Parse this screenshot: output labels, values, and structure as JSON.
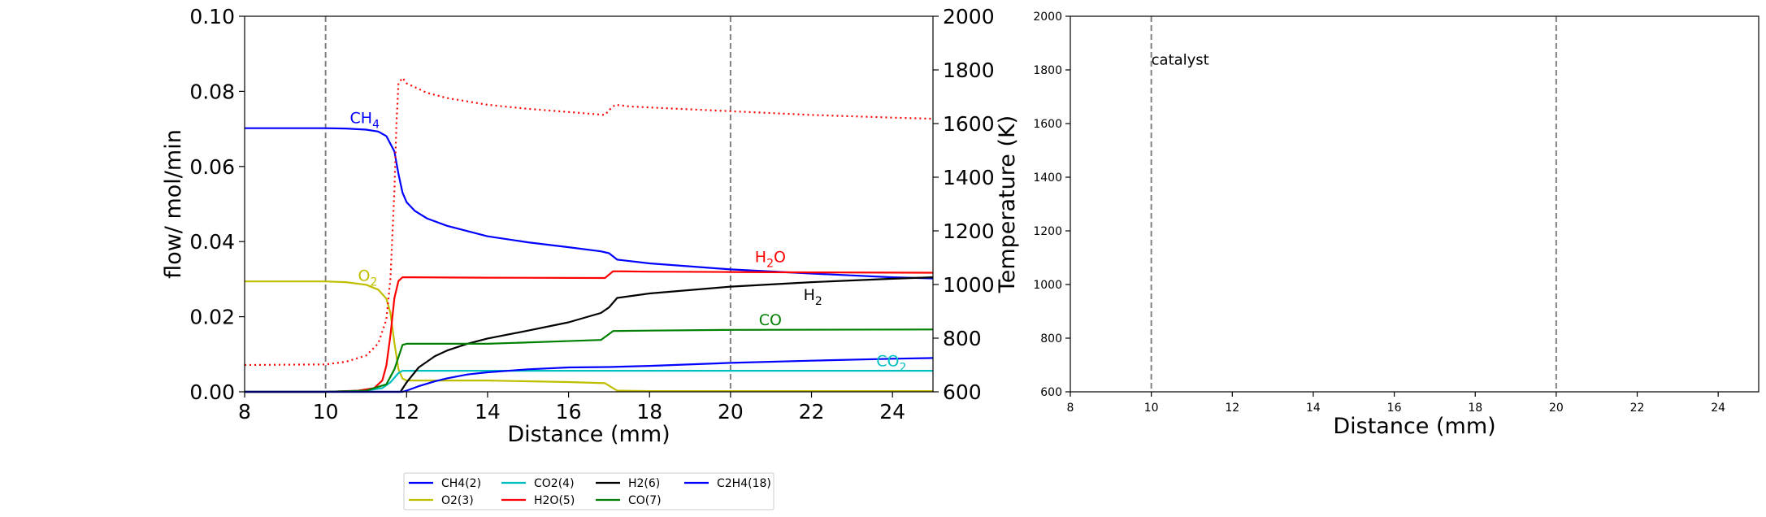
{
  "chart_data": [
    {
      "type": "line",
      "xlabel": "Distance (mm)",
      "ylabel": "flow/ mol/min",
      "y2label": "Temperature (K)",
      "xlim": [
        8,
        25
      ],
      "ylim": [
        0,
        0.1
      ],
      "y2lim": [
        600,
        2000
      ],
      "x_ticks": [
        "8",
        "10",
        "12",
        "14",
        "16",
        "18",
        "20",
        "22",
        "24"
      ],
      "y_ticks": [
        "0.00",
        "0.02",
        "0.04",
        "0.06",
        "0.08",
        "0.10"
      ],
      "y2_ticks": [
        "600",
        "800",
        "1000",
        "1200",
        "1400",
        "1600",
        "1800",
        "2000"
      ],
      "vlines": [
        10,
        20
      ],
      "series": [
        {
          "name": "CH4(2)",
          "color": "#0000ff",
          "x": [
            8,
            10,
            10.5,
            11,
            11.3,
            11.5,
            11.7,
            11.8,
            11.9,
            12,
            12.2,
            12.5,
            13,
            14,
            15,
            16,
            16.8,
            17,
            17.2,
            18,
            20,
            22,
            24,
            25
          ],
          "y": [
            0.0702,
            0.0702,
            0.0701,
            0.0698,
            0.0693,
            0.0681,
            0.064,
            0.058,
            0.053,
            0.0505,
            0.0482,
            0.0462,
            0.0442,
            0.0414,
            0.0398,
            0.0385,
            0.0374,
            0.0369,
            0.0352,
            0.0342,
            0.0326,
            0.0315,
            0.0305,
            0.0302
          ]
        },
        {
          "name": "O2(3)",
          "color": "#bfbf00",
          "x": [
            8,
            10,
            10.5,
            11,
            11.3,
            11.5,
            11.6,
            11.7,
            11.8,
            11.9,
            12,
            14,
            16,
            16.9,
            17.2,
            18,
            20,
            25
          ],
          "y": [
            0.0294,
            0.0294,
            0.0292,
            0.0285,
            0.0272,
            0.0248,
            0.021,
            0.013,
            0.006,
            0.0035,
            0.003,
            0.003,
            0.0026,
            0.0023,
            0.0003,
            0.0002,
            0.0002,
            0.0002
          ]
        },
        {
          "name": "CO2(4)",
          "color": "#00bfbf",
          "x": [
            8,
            10,
            11,
            11.4,
            11.6,
            11.8,
            11.9,
            12,
            14,
            17,
            20,
            25
          ],
          "y": [
            0,
            0,
            0.0003,
            0.001,
            0.0025,
            0.005,
            0.0056,
            0.0056,
            0.0056,
            0.0056,
            0.0056,
            0.0056
          ]
        },
        {
          "name": "H2O(5)",
          "color": "#ff0000",
          "x": [
            8,
            10,
            10.8,
            11.2,
            11.4,
            11.5,
            11.6,
            11.7,
            11.8,
            11.9,
            12,
            14,
            16.9,
            17.1,
            18,
            20,
            22,
            25
          ],
          "y": [
            0,
            0,
            0.0003,
            0.001,
            0.003,
            0.007,
            0.015,
            0.025,
            0.0295,
            0.0305,
            0.0305,
            0.0304,
            0.0303,
            0.0321,
            0.032,
            0.0319,
            0.0318,
            0.0317
          ]
        },
        {
          "name": "H2(6)",
          "color": "#000000",
          "x": [
            8,
            10,
            11.5,
            11.85,
            12,
            12.3,
            12.7,
            13,
            13.5,
            14,
            15,
            16,
            16.8,
            17,
            17.2,
            18,
            20,
            22,
            24,
            25
          ],
          "y": [
            0,
            0,
            0,
            0,
            0.0025,
            0.0065,
            0.0095,
            0.011,
            0.0128,
            0.0142,
            0.0163,
            0.0185,
            0.021,
            0.0225,
            0.025,
            0.0262,
            0.028,
            0.0292,
            0.0301,
            0.0305
          ]
        },
        {
          "name": "CO(7)",
          "color": "#008000",
          "x": [
            8,
            10,
            11,
            11.5,
            11.7,
            11.9,
            12,
            14,
            16.8,
            17.1,
            18,
            20,
            25
          ],
          "y": [
            0,
            0,
            0.0003,
            0.002,
            0.006,
            0.0125,
            0.0128,
            0.0128,
            0.0138,
            0.0162,
            0.0163,
            0.0165,
            0.0166
          ]
        },
        {
          "name": "C2H4(18)",
          "color": "#0000ff",
          "x": [
            8,
            11.9,
            12,
            12.3,
            12.7,
            13,
            13.5,
            14,
            15,
            16,
            17,
            18,
            20,
            22,
            24,
            25
          ],
          "y": [
            0,
            0,
            0.0003,
            0.0015,
            0.0028,
            0.0036,
            0.0046,
            0.0052,
            0.006,
            0.0065,
            0.0066,
            0.0069,
            0.0077,
            0.0083,
            0.0088,
            0.009
          ]
        }
      ],
      "temperature_series": {
        "color": "#ff0000",
        "x": [
          8,
          10,
          10.5,
          11,
          11.3,
          11.5,
          11.6,
          11.7,
          11.75,
          11.8,
          11.9,
          12,
          12.5,
          13,
          14,
          15,
          16,
          16.9,
          17,
          17.15,
          17.5,
          18,
          20,
          22,
          24,
          25
        ],
        "y": [
          700,
          702,
          712,
          735,
          780,
          870,
          1020,
          1350,
          1600,
          1750,
          1770,
          1750,
          1715,
          1695,
          1670,
          1655,
          1643,
          1632,
          1650,
          1670,
          1664,
          1660,
          1646,
          1632,
          1622,
          1618
        ]
      },
      "annotations": [
        {
          "base": "CH",
          "sub": "4",
          "after": "",
          "x": 10.6,
          "y": 0.0715,
          "color": "#0000ff"
        },
        {
          "base": "O",
          "sub": "2",
          "after": "",
          "x": 10.8,
          "y": 0.0295,
          "color": "#bfbf00"
        },
        {
          "base": "H",
          "sub": "2",
          "after": "O",
          "x": 20.6,
          "y": 0.0345,
          "color": "#ff0000"
        },
        {
          "base": "H",
          "sub": "2",
          "after": "",
          "x": 21.8,
          "y": 0.0245,
          "color": "#000000"
        },
        {
          "base": "CO",
          "sub": "",
          "after": "",
          "x": 20.7,
          "y": 0.0177,
          "color": "#008000"
        },
        {
          "base": "CO",
          "sub": "2",
          "after": "",
          "x": 23.6,
          "y": 0.0068,
          "color": "#00bfbf"
        }
      ],
      "legend": {
        "placement": "below",
        "columns": 4,
        "entries": [
          {
            "label": "CH4(2)",
            "color": "#0000ff"
          },
          {
            "label": "O2(3)",
            "color": "#bfbf00"
          },
          {
            "label": "CO2(4)",
            "color": "#00bfbf"
          },
          {
            "label": "H2O(5)",
            "color": "#ff0000"
          },
          {
            "label": "H2(6)",
            "color": "#000000"
          },
          {
            "label": "CO(7)",
            "color": "#008000"
          },
          {
            "label": "C2H4(18)",
            "color": "#0000ff"
          }
        ]
      }
    },
    {
      "type": "line",
      "xlabel": "Distance (mm)",
      "xlim": [
        8,
        25
      ],
      "ylim": [
        600,
        2000
      ],
      "x_ticks": [
        "8",
        "10",
        "12",
        "14",
        "16",
        "18",
        "20",
        "22",
        "24"
      ],
      "y_ticks": [
        "600",
        "800",
        "1000",
        "1200",
        "1400",
        "1600",
        "1800",
        "2000"
      ],
      "vlines": [
        10,
        20
      ],
      "series": [],
      "annotation": {
        "text": "catalyst",
        "x": 10,
        "y": 1820
      }
    }
  ]
}
